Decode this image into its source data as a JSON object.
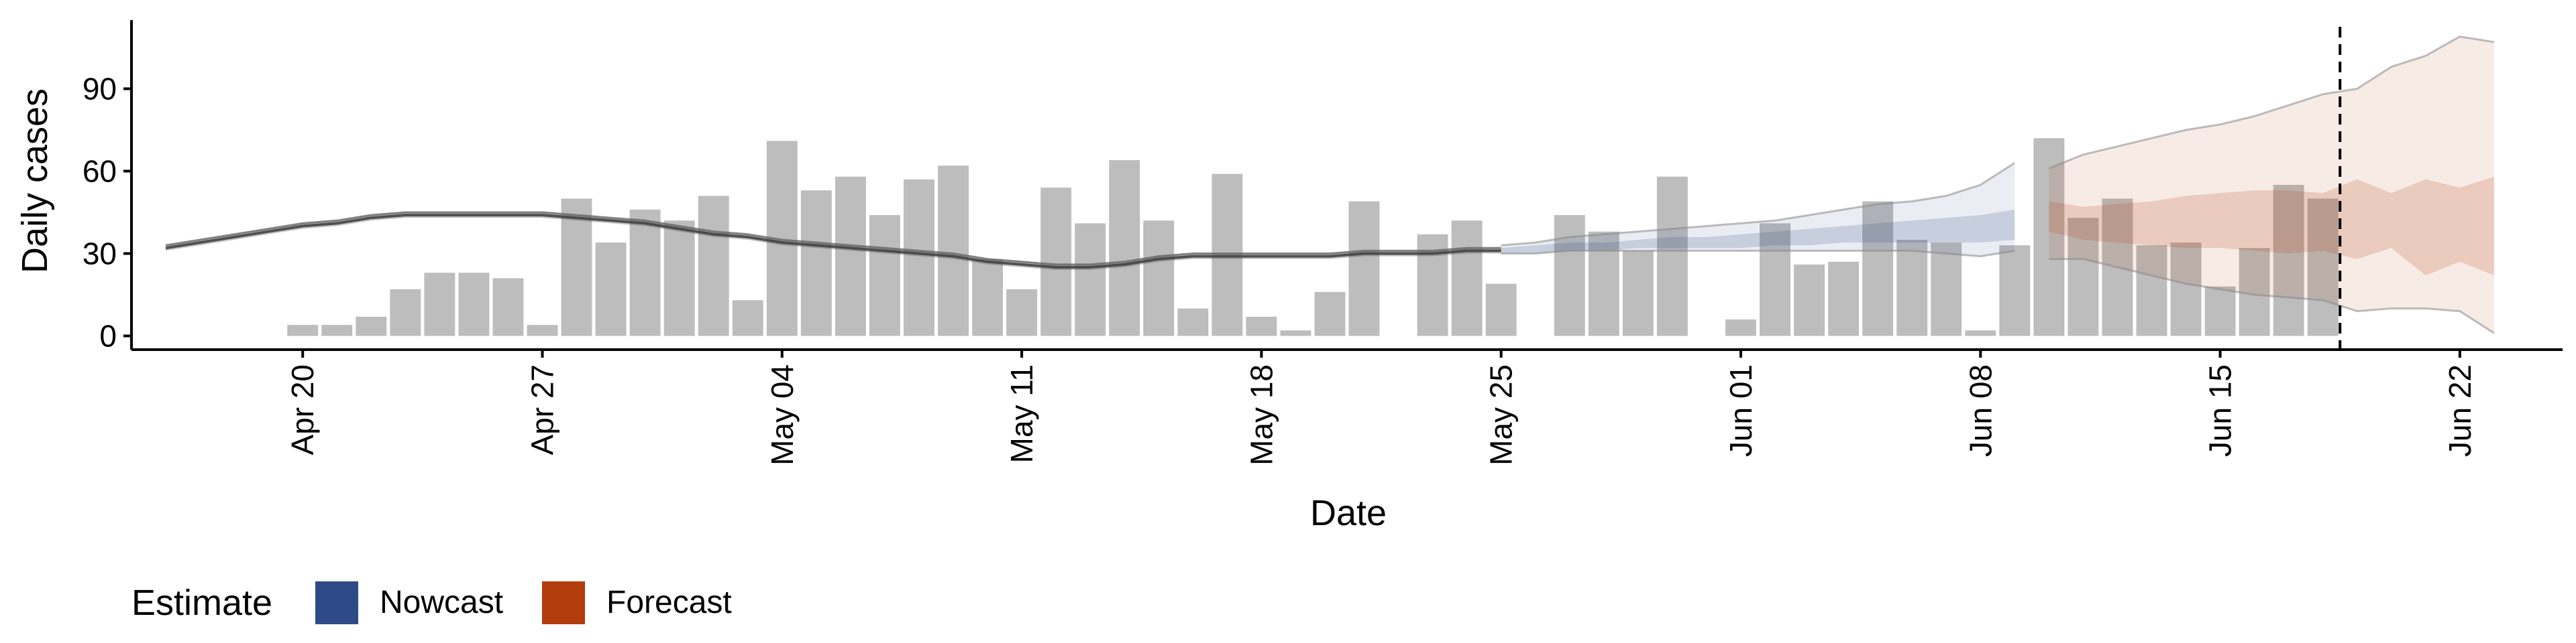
{
  "chart_data": {
    "type": "bar",
    "title": "",
    "xlabel": "Date",
    "ylabel": "Daily cases",
    "ylim": [
      -5,
      115
    ],
    "xlim": [
      "2020-04-15",
      "2020-06-25"
    ],
    "grid": false,
    "yticks": [
      0,
      30,
      60,
      90
    ],
    "ytick_labels": [
      "0",
      "30",
      "60",
      "90"
    ],
    "xticks": [
      "2020-04-20",
      "2020-04-27",
      "2020-05-04",
      "2020-05-11",
      "2020-05-18",
      "2020-05-25",
      "2020-06-01",
      "2020-06-08",
      "2020-06-15",
      "2020-06-22"
    ],
    "xtick_labels": [
      "Apr 20",
      "Apr 27",
      "May 04",
      "May 11",
      "May 18",
      "May 25",
      "Jun 01",
      "Jun 08",
      "Jun 15",
      "Jun 22"
    ],
    "reference_line_date": "2020-06-18",
    "observed": {
      "color": "#bdbdbd",
      "dates": [
        "2020-04-20",
        "2020-04-21",
        "2020-04-22",
        "2020-04-23",
        "2020-04-24",
        "2020-04-25",
        "2020-04-26",
        "2020-04-27",
        "2020-04-28",
        "2020-04-29",
        "2020-04-30",
        "2020-05-01",
        "2020-05-02",
        "2020-05-03",
        "2020-05-04",
        "2020-05-05",
        "2020-05-06",
        "2020-05-07",
        "2020-05-08",
        "2020-05-09",
        "2020-05-10",
        "2020-05-11",
        "2020-05-12",
        "2020-05-13",
        "2020-05-14",
        "2020-05-15",
        "2020-05-16",
        "2020-05-17",
        "2020-05-18",
        "2020-05-19",
        "2020-05-20",
        "2020-05-21",
        "2020-05-22",
        "2020-05-23",
        "2020-05-24",
        "2020-05-25",
        "2020-05-26",
        "2020-05-27",
        "2020-05-28",
        "2020-05-29",
        "2020-05-30",
        "2020-05-31",
        "2020-06-01",
        "2020-06-02",
        "2020-06-03",
        "2020-06-04",
        "2020-06-05",
        "2020-06-06",
        "2020-06-07",
        "2020-06-08",
        "2020-06-09",
        "2020-06-10",
        "2020-06-11",
        "2020-06-12",
        "2020-06-13",
        "2020-06-14",
        "2020-06-15",
        "2020-06-16",
        "2020-06-17",
        "2020-06-18"
      ],
      "values": [
        4,
        4,
        7,
        17,
        23,
        23,
        21,
        4,
        50,
        34,
        46,
        42,
        51,
        13,
        71,
        53,
        58,
        44,
        57,
        62,
        28,
        17,
        54,
        41,
        64,
        42,
        10,
        59,
        7,
        2,
        16,
        49,
        0,
        37,
        42,
        19,
        0,
        44,
        38,
        31,
        58,
        0,
        6,
        41,
        26,
        27,
        49,
        35,
        34,
        2,
        33,
        72,
        43,
        50,
        33,
        34,
        18,
        32,
        55,
        50
      ]
    },
    "series": [
      {
        "name": "Nowcast",
        "color": "#2e4a87",
        "x": [
          "2020-05-25",
          "2020-05-26",
          "2020-05-27",
          "2020-05-28",
          "2020-05-29",
          "2020-05-30",
          "2020-05-31",
          "2020-06-01",
          "2020-06-02",
          "2020-06-03",
          "2020-06-04",
          "2020-06-05",
          "2020-06-06",
          "2020-06-07",
          "2020-06-08",
          "2020-06-09"
        ],
        "median": [
          31,
          31,
          32,
          33,
          33,
          34,
          34,
          34,
          35,
          36,
          37,
          38,
          38,
          39,
          39,
          40
        ],
        "inner_lower": [
          30,
          30,
          31,
          31,
          32,
          32,
          32,
          32,
          33,
          33,
          34,
          34,
          34,
          34,
          34,
          35
        ],
        "inner_upper": [
          32,
          33,
          34,
          34,
          35,
          36,
          36,
          37,
          38,
          39,
          40,
          41,
          42,
          43,
          44,
          46
        ],
        "outer_lower": [
          30,
          30,
          31,
          31,
          31,
          31,
          31,
          31,
          31,
          31,
          31,
          31,
          31,
          30,
          29,
          31
        ],
        "outer_upper": [
          33,
          34,
          36,
          37,
          38,
          39,
          40,
          41,
          42,
          44,
          46,
          48,
          49,
          51,
          55,
          63
        ]
      },
      {
        "name": "Forecast",
        "color": "#b33c0c",
        "x": [
          "2020-06-10",
          "2020-06-11",
          "2020-06-12",
          "2020-06-13",
          "2020-06-14",
          "2020-06-15",
          "2020-06-16",
          "2020-06-17",
          "2020-06-18",
          "2020-06-19",
          "2020-06-20",
          "2020-06-21",
          "2020-06-22",
          "2020-06-23"
        ],
        "median": [
          40,
          40,
          41,
          41,
          42,
          42,
          42,
          43,
          43,
          43,
          44,
          44,
          44,
          44
        ],
        "inner_lower": [
          38,
          35,
          34,
          33,
          32,
          32,
          31,
          30,
          31,
          28,
          32,
          22,
          27,
          22
        ],
        "inner_upper": [
          49,
          47,
          48,
          49,
          51,
          52,
          53,
          53,
          52,
          57,
          52,
          57,
          54,
          58
        ],
        "outer_lower": [
          28,
          28,
          25,
          22,
          19,
          17,
          15,
          14,
          13,
          9,
          10,
          10,
          9,
          1
        ],
        "outer_upper": [
          61,
          66,
          69,
          72,
          75,
          77,
          80,
          84,
          88,
          90,
          98,
          102,
          109,
          107
        ]
      }
    ],
    "trend": {
      "x": [
        "2020-04-16",
        "2020-04-17",
        "2020-04-18",
        "2020-04-19",
        "2020-04-20",
        "2020-04-21",
        "2020-04-22",
        "2020-04-23",
        "2020-04-24",
        "2020-04-25",
        "2020-04-26",
        "2020-04-27",
        "2020-04-28",
        "2020-04-29",
        "2020-04-30",
        "2020-05-01",
        "2020-05-02",
        "2020-05-03",
        "2020-05-04",
        "2020-05-05",
        "2020-05-06",
        "2020-05-07",
        "2020-05-08",
        "2020-05-09",
        "2020-05-10",
        "2020-05-11",
        "2020-05-12",
        "2020-05-13",
        "2020-05-14",
        "2020-05-15",
        "2020-05-16",
        "2020-05-17",
        "2020-05-18",
        "2020-05-19",
        "2020-05-20",
        "2020-05-21",
        "2020-05-22",
        "2020-05-23",
        "2020-05-24",
        "2020-05-25"
      ],
      "values": [
        32,
        34,
        36,
        38,
        40,
        41,
        43,
        44,
        44,
        44,
        44,
        44,
        43,
        42,
        41,
        39,
        37,
        36,
        34,
        33,
        32,
        31,
        30,
        29,
        27,
        26,
        25,
        25,
        26,
        28,
        29,
        29,
        29,
        29,
        29,
        30,
        30,
        30,
        31,
        31
      ],
      "lower": [
        31,
        33,
        35,
        37,
        39,
        40,
        42,
        43,
        43,
        43,
        43,
        43,
        42,
        41,
        40,
        38,
        36,
        35,
        33,
        32,
        31,
        30,
        29,
        28,
        26,
        25,
        24,
        24,
        25,
        27,
        28,
        28,
        28,
        28,
        28,
        29,
        29,
        29,
        30,
        30
      ],
      "upper": [
        33,
        35,
        37,
        39,
        41,
        42,
        44,
        45,
        45,
        45,
        45,
        45,
        44,
        43,
        42,
        40,
        38,
        37,
        35,
        34,
        33,
        32,
        31,
        30,
        28,
        27,
        26,
        26,
        27,
        29,
        30,
        30,
        30,
        30,
        30,
        31,
        31,
        31,
        32,
        32
      ]
    },
    "legend": {
      "title": "Estimate",
      "position": "bottom-left",
      "items": [
        {
          "label": "Nowcast",
          "color": "#2e4a87"
        },
        {
          "label": "Forecast",
          "color": "#b33c0c"
        }
      ]
    }
  }
}
